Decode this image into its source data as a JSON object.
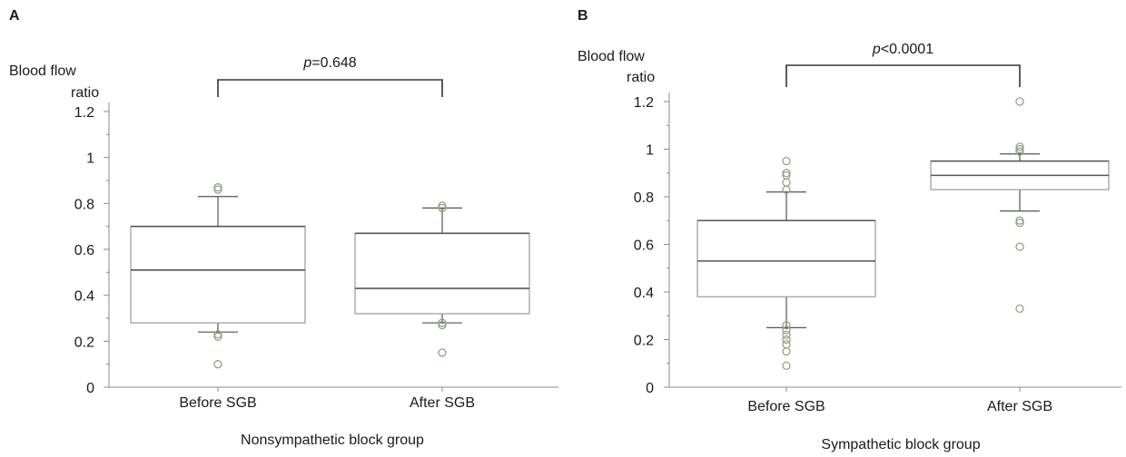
{
  "chart_data": [
    {
      "type": "box",
      "panel_label": "A",
      "ylabel": "Blood flow ratio",
      "ylabel_lines": [
        "Blood flow",
        "ratio"
      ],
      "xlabel": "Nonsympathetic block group",
      "ylim": [
        0,
        1.2
      ],
      "yticks": [
        "0",
        "0.2",
        "0.4",
        "0.6",
        "0.8",
        "1",
        "1.2"
      ],
      "categories": [
        "Before SGB",
        "After SGB"
      ],
      "boxes": [
        {
          "whisker_low": 0.24,
          "q1": 0.28,
          "median": 0.51,
          "q3": 0.7,
          "whisker_high": 0.83,
          "outliers": [
            0.87,
            0.86,
            0.23,
            0.22,
            0.1
          ]
        },
        {
          "whisker_low": 0.28,
          "q1": 0.32,
          "median": 0.43,
          "q3": 0.67,
          "whisker_high": 0.78,
          "outliers": [
            0.79,
            0.78,
            0.28,
            0.27,
            0.15
          ]
        }
      ],
      "significance": {
        "p_italic": "p",
        "text": "=0.648"
      }
    },
    {
      "type": "box",
      "panel_label": "B",
      "ylabel": "Blood flow ratio",
      "ylabel_lines": [
        "Blood flow",
        "ratio"
      ],
      "xlabel": "Sympathetic block group",
      "ylim": [
        0,
        1.2
      ],
      "yticks": [
        "0",
        "0.2",
        "0.4",
        "0.6",
        "0.8",
        "1",
        "1.2"
      ],
      "categories": [
        "Before SGB",
        "After SGB"
      ],
      "boxes": [
        {
          "whisker_low": 0.25,
          "q1": 0.38,
          "median": 0.53,
          "q3": 0.7,
          "whisker_high": 0.82,
          "outliers": [
            0.95,
            0.9,
            0.89,
            0.86,
            0.83,
            0.26,
            0.24,
            0.22,
            0.2,
            0.18,
            0.15,
            0.09
          ]
        },
        {
          "whisker_low": 0.74,
          "q1": 0.83,
          "median": 0.89,
          "q3": 0.95,
          "whisker_high": 0.98,
          "outliers": [
            1.2,
            1.01,
            1.0,
            0.99,
            0.7,
            0.69,
            0.59,
            0.33
          ]
        }
      ],
      "significance": {
        "p_italic": "p",
        "text": "<0.0001"
      }
    }
  ]
}
